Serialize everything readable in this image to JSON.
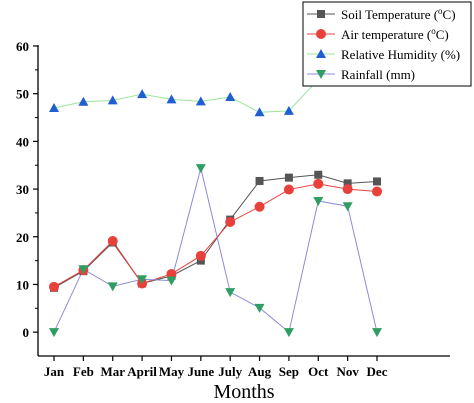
{
  "chart_data": {
    "type": "line",
    "title": "",
    "xlabel": "Months",
    "ylabel": "",
    "categories": [
      "Jan",
      "Feb",
      "Mar",
      "April",
      "May",
      "June",
      "July",
      "Aug",
      "Sep",
      "Oct",
      "Nov",
      "Dec"
    ],
    "ylim": [
      -5,
      60
    ],
    "yticks": [
      0,
      10,
      20,
      30,
      40,
      50,
      60
    ],
    "ytick_labels": [
      "0",
      "10",
      "20",
      "30",
      "40",
      "50",
      "60"
    ],
    "grid": false,
    "legend_position": "top-right",
    "series": [
      {
        "name_parts": [
          "Soil Temperature (",
          "o",
          "C)"
        ],
        "color": "#555555",
        "marker": "square",
        "values": [
          9.3,
          12.8,
          18.8,
          10.2,
          11.8,
          15.0,
          23.6,
          31.7,
          32.4,
          33.0,
          31.2,
          31.6
        ]
      },
      {
        "name_parts": [
          "Air temperature (",
          "o",
          "C)"
        ],
        "color": "#e8413c",
        "marker": "circle",
        "values": [
          9.5,
          13.0,
          19.1,
          10.2,
          12.2,
          16.0,
          23.1,
          26.3,
          29.9,
          31.1,
          30.0,
          29.5
        ]
      },
      {
        "name": "Relative Humidity (%)",
        "color": "#1f5fd1",
        "line_color": "#9be59b",
        "marker": "triangle-up",
        "values": [
          47.0,
          48.3,
          48.6,
          49.9,
          48.8,
          48.4,
          49.3,
          46.1,
          46.4,
          53.0,
          57.0,
          60.0
        ]
      },
      {
        "name": "Rainfall (mm)",
        "color": "#2e9e63",
        "line_color": "#8c8cd8",
        "marker": "triangle-down",
        "values": [
          0.0,
          13.2,
          9.6,
          11.1,
          10.8,
          34.4,
          8.4,
          5.1,
          0.0,
          27.5,
          26.4,
          0.0
        ]
      }
    ]
  }
}
